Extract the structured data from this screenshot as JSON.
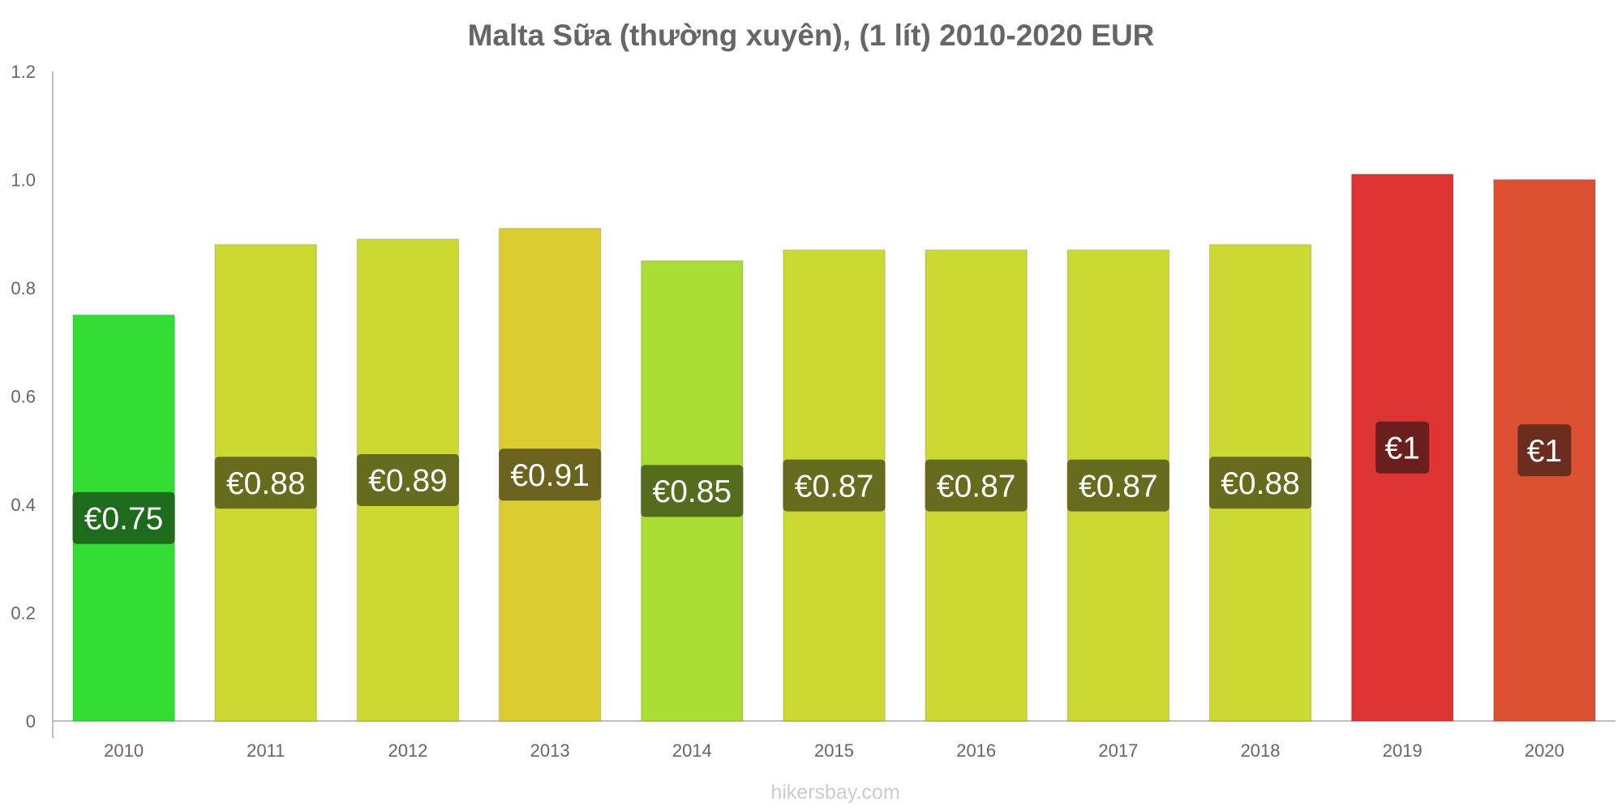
{
  "chart_data": {
    "type": "bar",
    "title": "Malta Sữa (thường xuyên), (1 lít) 2010-2020 EUR",
    "categories": [
      "2010",
      "2011",
      "2012",
      "2013",
      "2014",
      "2015",
      "2016",
      "2017",
      "2018",
      "2019",
      "2020"
    ],
    "values": [
      0.75,
      0.88,
      0.89,
      0.91,
      0.85,
      0.87,
      0.87,
      0.87,
      0.88,
      1.01,
      1.0
    ],
    "value_labels": [
      "€0.75",
      "€0.88",
      "€0.89",
      "€0.91",
      "€0.85",
      "€0.87",
      "€0.87",
      "€0.87",
      "€0.88",
      "€1",
      "€1"
    ],
    "bar_colors": [
      "#33dd33",
      "#ccd933",
      "#ccd933",
      "#dbcc33",
      "#aadd33",
      "#ccd933",
      "#ccd933",
      "#ccd933",
      "#ccd933",
      "#dd3333",
      "#dd5133"
    ],
    "label_colors": [
      "#1e6b1e",
      "#676b1e",
      "#676b1e",
      "#6b621e",
      "#556b1e",
      "#676b1e",
      "#676b1e",
      "#676b1e",
      "#676b1e",
      "#6b1e1e",
      "#6b2d1e"
    ],
    "yticks": [
      0,
      0.2,
      0.4,
      0.6,
      0.8,
      1.0,
      1.2
    ],
    "ytick_labels": [
      "0",
      "0.2",
      "0.4",
      "0.6",
      "0.8",
      "1.0",
      "1.2"
    ],
    "ylim": [
      0,
      1.2
    ],
    "xlabel": "",
    "ylabel": "",
    "grid": false,
    "legend": "none"
  },
  "watermark": "hikersbay.com"
}
